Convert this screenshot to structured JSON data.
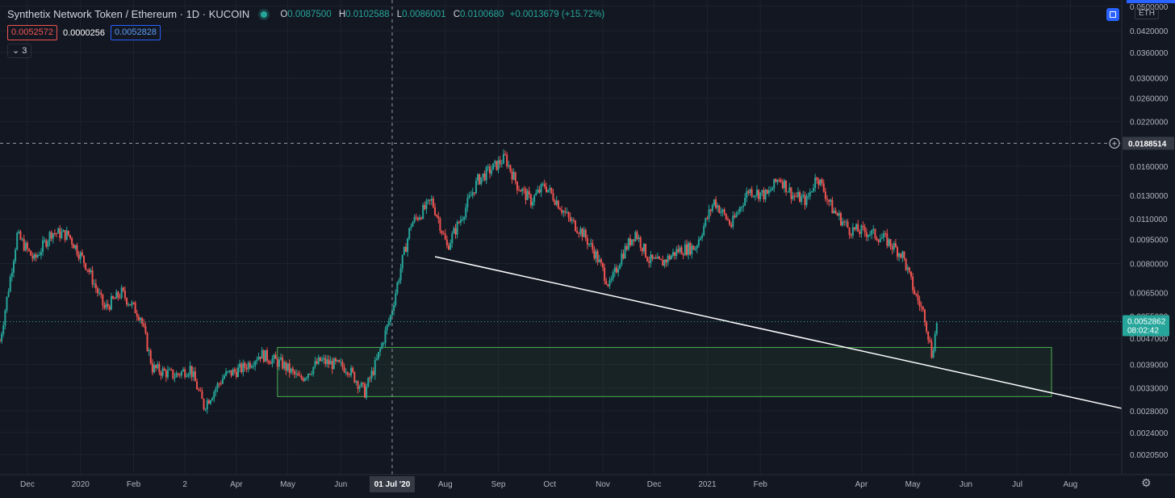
{
  "header": {
    "title": "Synthetix Network Token / Ethereum · 1D · KUCOIN",
    "ohlc": [
      {
        "k": "O",
        "v": "0.0087500"
      },
      {
        "k": "H",
        "v": "0.0102588"
      },
      {
        "k": "L",
        "v": "0.0086001"
      },
      {
        "k": "C",
        "v": "0.0100680"
      }
    ],
    "change": "+0.0013679 (+15.72%)"
  },
  "indicator": {
    "v1": "0.0052572",
    "v2": "0.0000256",
    "v3": "0.0052828"
  },
  "collapse_label": "3",
  "currency_label": "ETH",
  "colors": {
    "up": "#26a69a",
    "down": "#ef5350",
    "bg": "#131722",
    "grid": "#1e222d",
    "zone": "#4caf50",
    "trendline": "#ffffff"
  },
  "chart_data": {
    "type": "candlestick",
    "y_scale": "log",
    "y_ticks": [
      "0.0500000",
      "0.0420000",
      "0.0360000",
      "0.0300000",
      "0.0260000",
      "0.0220000",
      "0.0160000",
      "0.0130000",
      "0.0110000",
      "0.0095000",
      "0.0080000",
      "0.0065000",
      "0.0055000",
      "0.0047000",
      "0.0039000",
      "0.0033000",
      "0.0028000",
      "0.0024000",
      "0.0020500"
    ],
    "x_ticks": [
      {
        "label": "Dec",
        "date": "2019-12-01"
      },
      {
        "label": "2020",
        "date": "2020-01-01"
      },
      {
        "label": "Feb",
        "date": "2020-02-01"
      },
      {
        "label": "2",
        "date": "2020-03-02"
      },
      {
        "label": "Apr",
        "date": "2020-04-01"
      },
      {
        "label": "May",
        "date": "2020-05-01"
      },
      {
        "label": "Jun",
        "date": "2020-06-01"
      },
      {
        "label": "Aug",
        "date": "2020-08-01"
      },
      {
        "label": "Sep",
        "date": "2020-09-01"
      },
      {
        "label": "Oct",
        "date": "2020-10-01"
      },
      {
        "label": "Nov",
        "date": "2020-11-01"
      },
      {
        "label": "Dec",
        "date": "2020-12-01"
      },
      {
        "label": "2021",
        "date": "2021-01-01"
      },
      {
        "label": "Feb",
        "date": "2021-02-01"
      },
      {
        "label": "Apr",
        "date": "2021-04-01"
      },
      {
        "label": "May",
        "date": "2021-05-01"
      },
      {
        "label": "Jun",
        "date": "2021-06-01"
      },
      {
        "label": "Jul",
        "date": "2021-07-01"
      },
      {
        "label": "Aug",
        "date": "2021-08-01"
      }
    ],
    "x_range": [
      "2019-11-15",
      "2021-08-31"
    ],
    "crosshair": {
      "date": "2020-07-01",
      "date_label": "01 Jul '20",
      "price": 0.0188514,
      "price_label": "0.0188514"
    },
    "last_price": {
      "price": 0.0052862,
      "label": "0.0052862",
      "countdown": "08:02:42"
    },
    "zone": {
      "start": "2020-04-25",
      "end": "2021-07-21",
      "low": 0.0031,
      "high": 0.0044
    },
    "trendline": {
      "start_date": "2020-07-26",
      "start_price": 0.0084,
      "end_date": "2021-08-31",
      "end_price": 0.00285
    },
    "anchors": [
      [
        "2019-11-15",
        0.0046
      ],
      [
        "2019-11-25",
        0.0098
      ],
      [
        "2019-12-05",
        0.0082
      ],
      [
        "2019-12-15",
        0.01
      ],
      [
        "2019-12-25",
        0.0098
      ],
      [
        "2020-01-05",
        0.0078
      ],
      [
        "2020-01-15",
        0.0058
      ],
      [
        "2020-01-25",
        0.0065
      ],
      [
        "2020-02-05",
        0.0055
      ],
      [
        "2020-02-12",
        0.0038
      ],
      [
        "2020-02-25",
        0.0036
      ],
      [
        "2020-03-05",
        0.0038
      ],
      [
        "2020-03-13",
        0.0029
      ],
      [
        "2020-03-25",
        0.0036
      ],
      [
        "2020-04-05",
        0.0038
      ],
      [
        "2020-04-15",
        0.0042
      ],
      [
        "2020-04-28",
        0.0039
      ],
      [
        "2020-05-08",
        0.0035
      ],
      [
        "2020-05-20",
        0.004
      ],
      [
        "2020-06-05",
        0.0038
      ],
      [
        "2020-06-15",
        0.0032
      ],
      [
        "2020-06-22",
        0.004
      ],
      [
        "2020-06-30",
        0.0055
      ],
      [
        "2020-07-07",
        0.0082
      ],
      [
        "2020-07-12",
        0.0106
      ],
      [
        "2020-07-18",
        0.0115
      ],
      [
        "2020-07-24",
        0.0125
      ],
      [
        "2020-07-28",
        0.011
      ],
      [
        "2020-08-02",
        0.009
      ],
      [
        "2020-08-10",
        0.011
      ],
      [
        "2020-08-20",
        0.0145
      ],
      [
        "2020-08-30",
        0.016
      ],
      [
        "2020-09-05",
        0.017
      ],
      [
        "2020-09-12",
        0.014
      ],
      [
        "2020-09-20",
        0.0125
      ],
      [
        "2020-09-28",
        0.014
      ],
      [
        "2020-10-05",
        0.0125
      ],
      [
        "2020-10-12",
        0.011
      ],
      [
        "2020-10-20",
        0.01
      ],
      [
        "2020-10-28",
        0.0085
      ],
      [
        "2020-11-05",
        0.0068
      ],
      [
        "2020-11-12",
        0.0085
      ],
      [
        "2020-11-20",
        0.01
      ],
      [
        "2020-11-28",
        0.0082
      ],
      [
        "2020-12-05",
        0.008
      ],
      [
        "2020-12-15",
        0.0088
      ],
      [
        "2020-12-25",
        0.009
      ],
      [
        "2021-01-05",
        0.0125
      ],
      [
        "2021-01-15",
        0.0105
      ],
      [
        "2021-01-25",
        0.0135
      ],
      [
        "2021-02-05",
        0.013
      ],
      [
        "2021-02-12",
        0.0148
      ],
      [
        "2021-02-20",
        0.013
      ],
      [
        "2021-02-28",
        0.0125
      ],
      [
        "2021-03-06",
        0.015
      ],
      [
        "2021-03-15",
        0.0118
      ],
      [
        "2021-03-25",
        0.0102
      ],
      [
        "2021-04-05",
        0.01
      ],
      [
        "2021-04-15",
        0.0095
      ],
      [
        "2021-04-25",
        0.0085
      ],
      [
        "2021-05-02",
        0.0065
      ],
      [
        "2021-05-08",
        0.0055
      ],
      [
        "2021-05-12",
        0.0042
      ],
      [
        "2021-05-14",
        0.0048
      ],
      [
        "2021-05-15",
        0.0053
      ]
    ]
  }
}
